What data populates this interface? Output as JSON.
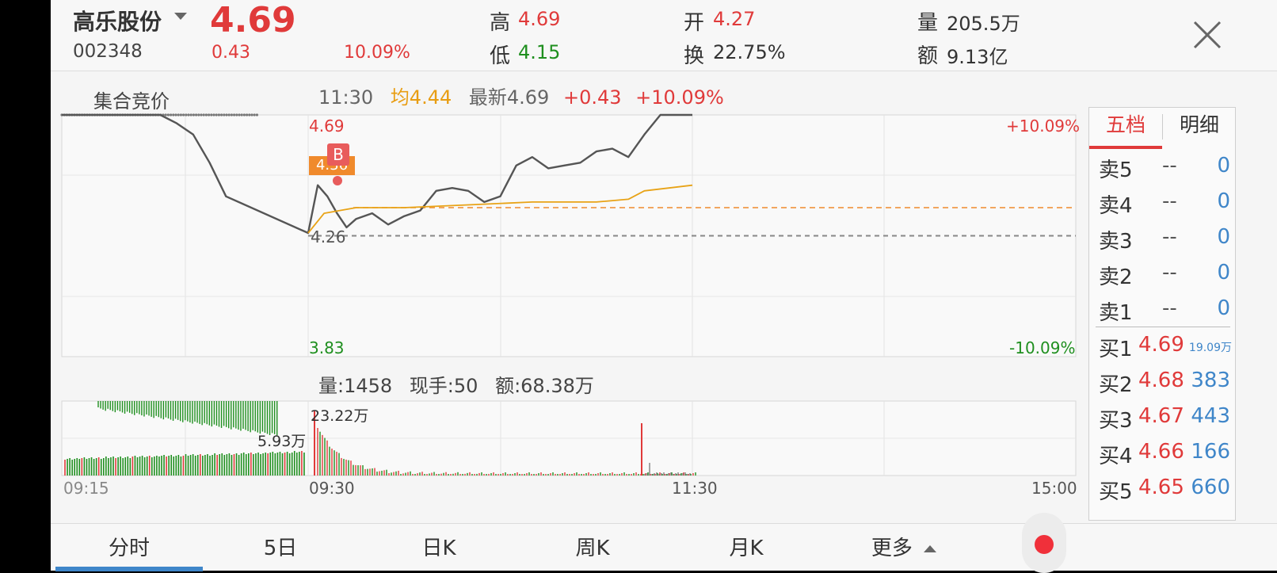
{
  "header": {
    "stock_name": "高乐股份",
    "stock_code": "002348",
    "price": "4.69",
    "change": "0.43",
    "change_pct": "10.09%",
    "high_label": "高",
    "high_value": "4.69",
    "low_label": "低",
    "low_value": "4.15",
    "open_label": "开",
    "open_value": "4.27",
    "turnover_label": "换",
    "turnover_value": "22.75%",
    "volume_label": "量",
    "volume_value": "205.5万",
    "amount_label": "额",
    "amount_value": "9.13亿"
  },
  "chart": {
    "auction_label": "集合竞价",
    "info_time": "11:30",
    "info_avg": "均4.44",
    "info_latest": "最新4.69",
    "info_change": "+0.43",
    "info_pct": "+10.09%",
    "price_high_label": "4.69",
    "price_low_label": "3.83",
    "pct_high_label": "+10.09%",
    "pct_low_label": "-10.09%",
    "prev_close_label": "4.26",
    "marker_label": "B",
    "marker_price": "4.36",
    "vol_info_volume": "量:1458",
    "vol_info_hand": "现手:50",
    "vol_info_amount": "额:68.38万",
    "vol_max_label": "23.22万",
    "vol_auction_label": "5.93万",
    "time_labels": [
      "09:15",
      "09:30",
      "11:30",
      "15:00"
    ]
  },
  "chart_data": {
    "type": "line",
    "ylim": [
      3.83,
      4.69
    ],
    "prev_close": 4.26,
    "pct_range": [
      "+10.09%",
      "-10.09%"
    ],
    "x_ticks": [
      "09:15",
      "09:30",
      "11:30",
      "15:00"
    ],
    "series": [
      {
        "type": "line",
        "x": [
          "09:15",
          "09:20",
          "09:21",
          "09:22",
          "09:23",
          "09:24",
          "09:25",
          "09:30",
          "09:33",
          "09:36",
          "09:39",
          "09:42",
          "09:45",
          "09:50",
          "09:55",
          "10:00",
          "10:05",
          "10:10",
          "10:15",
          "10:20",
          "10:25",
          "10:30",
          "10:35",
          "10:40",
          "10:45",
          "10:50",
          "10:55",
          "11:00",
          "11:05",
          "11:10",
          "11:15",
          "11:20",
          "11:25",
          "11:30"
        ],
        "values": [
          4.69,
          4.69,
          4.69,
          4.66,
          4.62,
          4.52,
          4.4,
          4.27,
          4.44,
          4.4,
          4.34,
          4.29,
          4.32,
          4.34,
          4.3,
          4.33,
          4.35,
          4.42,
          4.43,
          4.42,
          4.38,
          4.4,
          4.51,
          4.54,
          4.5,
          4.51,
          4.52,
          4.56,
          4.57,
          4.54,
          4.62,
          4.69,
          4.69,
          4.69
        ]
      },
      {
        "type": "line",
        "x": [
          "09:30",
          "09:35",
          "09:45",
          "10:00",
          "10:20",
          "10:40",
          "11:00",
          "11:10",
          "11:15",
          "11:30"
        ],
        "values": [
          4.27,
          4.34,
          4.36,
          4.36,
          4.37,
          4.38,
          4.38,
          4.39,
          4.42,
          4.44
        ]
      }
    ],
    "volume": {
      "ylim_label": "23.22万",
      "auction_label": "5.93万",
      "peak_time": "09:30",
      "peak_value": "23.22万"
    }
  },
  "orderbook": {
    "tabs": [
      "五档",
      "明细"
    ],
    "asks": [
      {
        "label": "卖5",
        "price": "--",
        "volume": "0"
      },
      {
        "label": "卖4",
        "price": "--",
        "volume": "0"
      },
      {
        "label": "卖3",
        "price": "--",
        "volume": "0"
      },
      {
        "label": "卖2",
        "price": "--",
        "volume": "0"
      },
      {
        "label": "卖1",
        "price": "--",
        "volume": "0"
      }
    ],
    "bids": [
      {
        "label": "买1",
        "price": "4.69",
        "volume": "19.09万"
      },
      {
        "label": "买2",
        "price": "4.68",
        "volume": "383"
      },
      {
        "label": "买3",
        "price": "4.67",
        "volume": "443"
      },
      {
        "label": "买4",
        "price": "4.66",
        "volume": "166"
      },
      {
        "label": "买5",
        "price": "4.65",
        "volume": "660"
      }
    ]
  },
  "tabs": [
    "分时",
    "5日",
    "日K",
    "周K",
    "月K",
    "更多"
  ],
  "colors": {
    "up": "#e03a3a",
    "down": "#1f8f1f",
    "avg_line": "#e8a317",
    "price_line": "#555555",
    "accent_blue": "#3f86c9"
  }
}
